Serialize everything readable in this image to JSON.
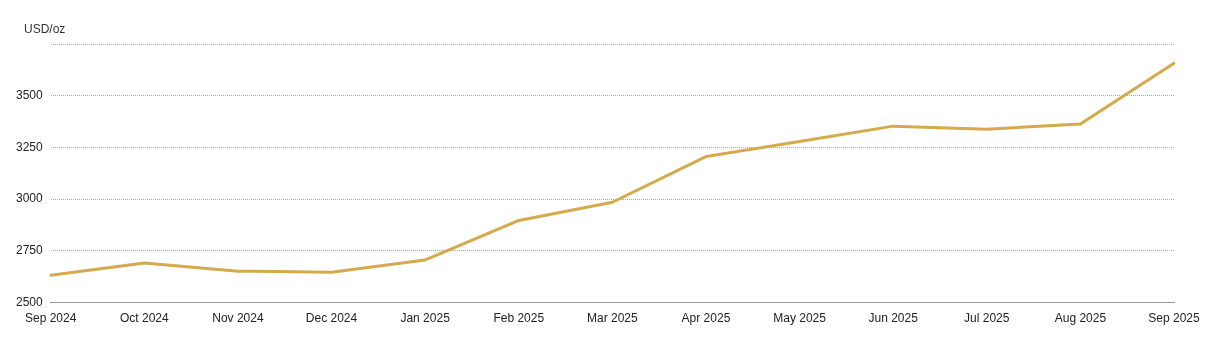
{
  "chart_data": {
    "type": "line",
    "ylabel": "USD/oz",
    "categories": [
      "Sep 2024",
      "Oct 2024",
      "Nov 2024",
      "Dec 2024",
      "Jan 2025",
      "Feb 2025",
      "Mar 2025",
      "Apr 2025",
      "May 2025",
      "Jun 2025",
      "Jul 2025",
      "Aug 2025",
      "Sep 2025"
    ],
    "series": [
      {
        "color": "#d4aa4c",
        "values": [
          2632,
          2691,
          2652,
          2647,
          2706,
          2897,
          2985,
          3206,
          3279,
          3353,
          3338,
          3363,
          3657
        ]
      }
    ],
    "ylim": [
      2500,
      3750
    ],
    "yticks": [
      2500,
      2750,
      3000,
      3250,
      3500,
      {
        "value": 3750,
        "label": null
      }
    ],
    "grid": "y",
    "marker": "none",
    "line_style": "solid",
    "legend": false
  }
}
